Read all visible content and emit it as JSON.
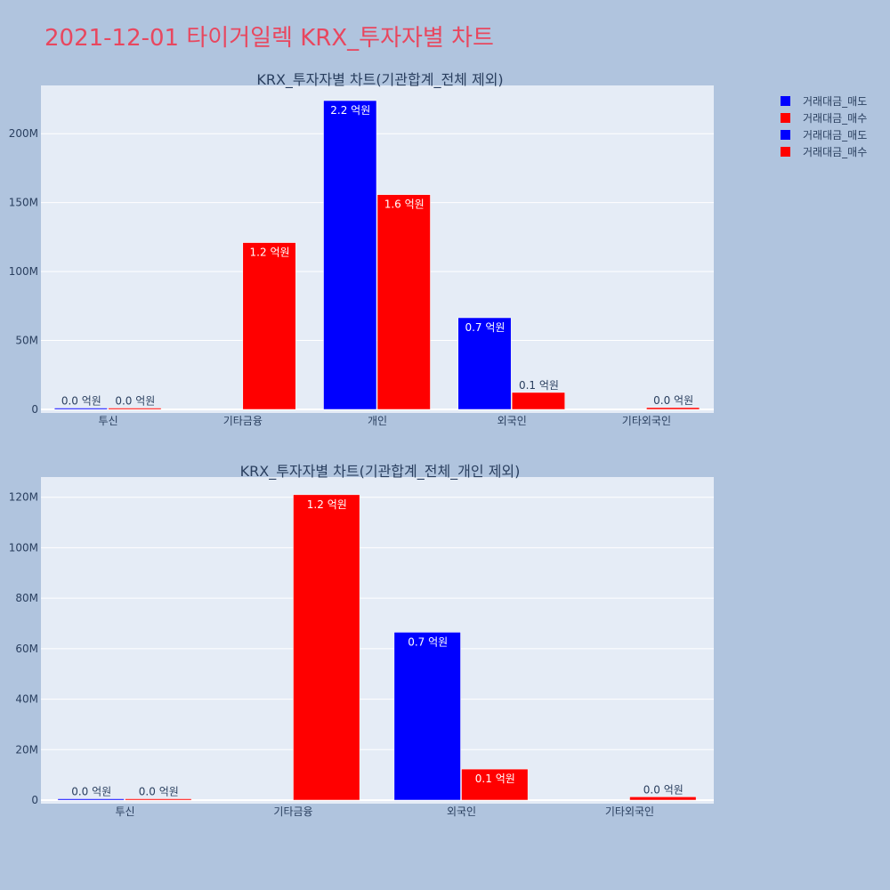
{
  "title": "2021-12-01 타이거일렉 KRX_투자자별 차트",
  "colors": {
    "sell": "#0000ff",
    "buy": "#ff0000"
  },
  "legend": [
    {
      "name": "거래대금_매도",
      "color": "#0000ff"
    },
    {
      "name": "거래대금_매수",
      "color": "#ff0000"
    },
    {
      "name": "거래대금_매도",
      "color": "#0000ff"
    },
    {
      "name": "거래대금_매수",
      "color": "#ff0000"
    }
  ],
  "chart_data": [
    {
      "type": "bar",
      "title": "KRX_투자자별 차트(기관합계_전체 제외)",
      "categories": [
        "투신",
        "기타금융",
        "개인",
        "외국인",
        "기타외국인"
      ],
      "series": [
        {
          "name": "거래대금_매도",
          "values": [
            200000,
            0,
            224000000,
            66500000,
            0
          ],
          "labels": [
            "0.0 억원",
            "",
            "2.2 억원",
            "0.7 억원",
            ""
          ]
        },
        {
          "name": "거래대금_매수",
          "values": [
            300000,
            121000000,
            155800000,
            12300000,
            1300000
          ],
          "labels": [
            "0.0 억원",
            "1.2 억원",
            "1.6 억원",
            "0.1 억원",
            "0.0 억원"
          ]
        }
      ],
      "ylim": [
        0,
        235000000
      ],
      "yticks": [
        0,
        50000000,
        100000000,
        150000000,
        200000000
      ],
      "ytick_labels": [
        "0",
        "50M",
        "100M",
        "150M",
        "200M"
      ],
      "grid": true
    },
    {
      "type": "bar",
      "title": "KRX_투자자별 차트(기관합계_전체_개인 제외)",
      "categories": [
        "투신",
        "기타금융",
        "외국인",
        "기타외국인"
      ],
      "series": [
        {
          "name": "거래대금_매도",
          "values": [
            200000,
            0,
            66500000,
            0
          ],
          "labels": [
            "0.0 억원",
            "",
            "0.7 억원",
            ""
          ]
        },
        {
          "name": "거래대금_매수",
          "values": [
            300000,
            121000000,
            12300000,
            1300000
          ],
          "labels": [
            "0.0 억원",
            "1.2 억원",
            "0.1 억원",
            "0.0 억원"
          ]
        }
      ],
      "ylim": [
        0,
        128000000
      ],
      "yticks": [
        0,
        20000000,
        40000000,
        60000000,
        80000000,
        100000000,
        120000000
      ],
      "ytick_labels": [
        "0",
        "20M",
        "40M",
        "60M",
        "80M",
        "100M",
        "120M"
      ],
      "grid": true
    }
  ]
}
